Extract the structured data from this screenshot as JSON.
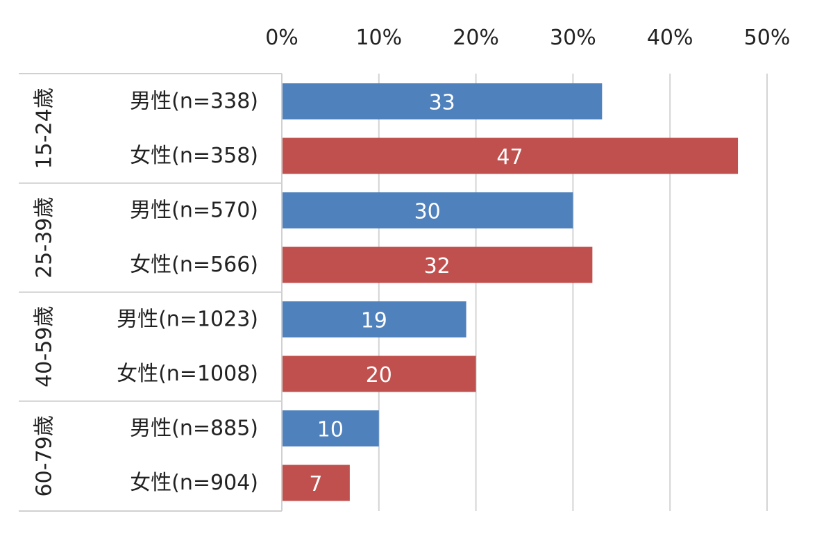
{
  "chart_data": {
    "type": "bar",
    "orientation": "horizontal",
    "xlim": [
      0,
      50
    ],
    "x_ticks": [
      {
        "value": 0,
        "label": "0%"
      },
      {
        "value": 10,
        "label": "10%"
      },
      {
        "value": 20,
        "label": "20%"
      },
      {
        "value": 30,
        "label": "30%"
      },
      {
        "value": 40,
        "label": "40%"
      },
      {
        "value": 50,
        "label": "50%"
      }
    ],
    "grid": true,
    "colors": {
      "男性": "#4f81bd",
      "女性": "#c0504d"
    },
    "groups": [
      {
        "label": "15-24歳",
        "rows": [
          {
            "label": "男性(n=338)",
            "gender": "男性",
            "value": 33
          },
          {
            "label": "女性(n=358)",
            "gender": "女性",
            "value": 47
          }
        ]
      },
      {
        "label": "25-39歳",
        "rows": [
          {
            "label": "男性(n=570)",
            "gender": "男性",
            "value": 30
          },
          {
            "label": "女性(n=566)",
            "gender": "女性",
            "value": 32
          }
        ]
      },
      {
        "label": "40-59歳",
        "rows": [
          {
            "label": "男性(n=1023)",
            "gender": "男性",
            "value": 19
          },
          {
            "label": "女性(n=1008)",
            "gender": "女性",
            "value": 20
          }
        ]
      },
      {
        "label": "60-79歳",
        "rows": [
          {
            "label": "男性(n=885)",
            "gender": "男性",
            "value": 10
          },
          {
            "label": "女性(n=904)",
            "gender": "女性",
            "value": 7
          }
        ]
      }
    ]
  }
}
